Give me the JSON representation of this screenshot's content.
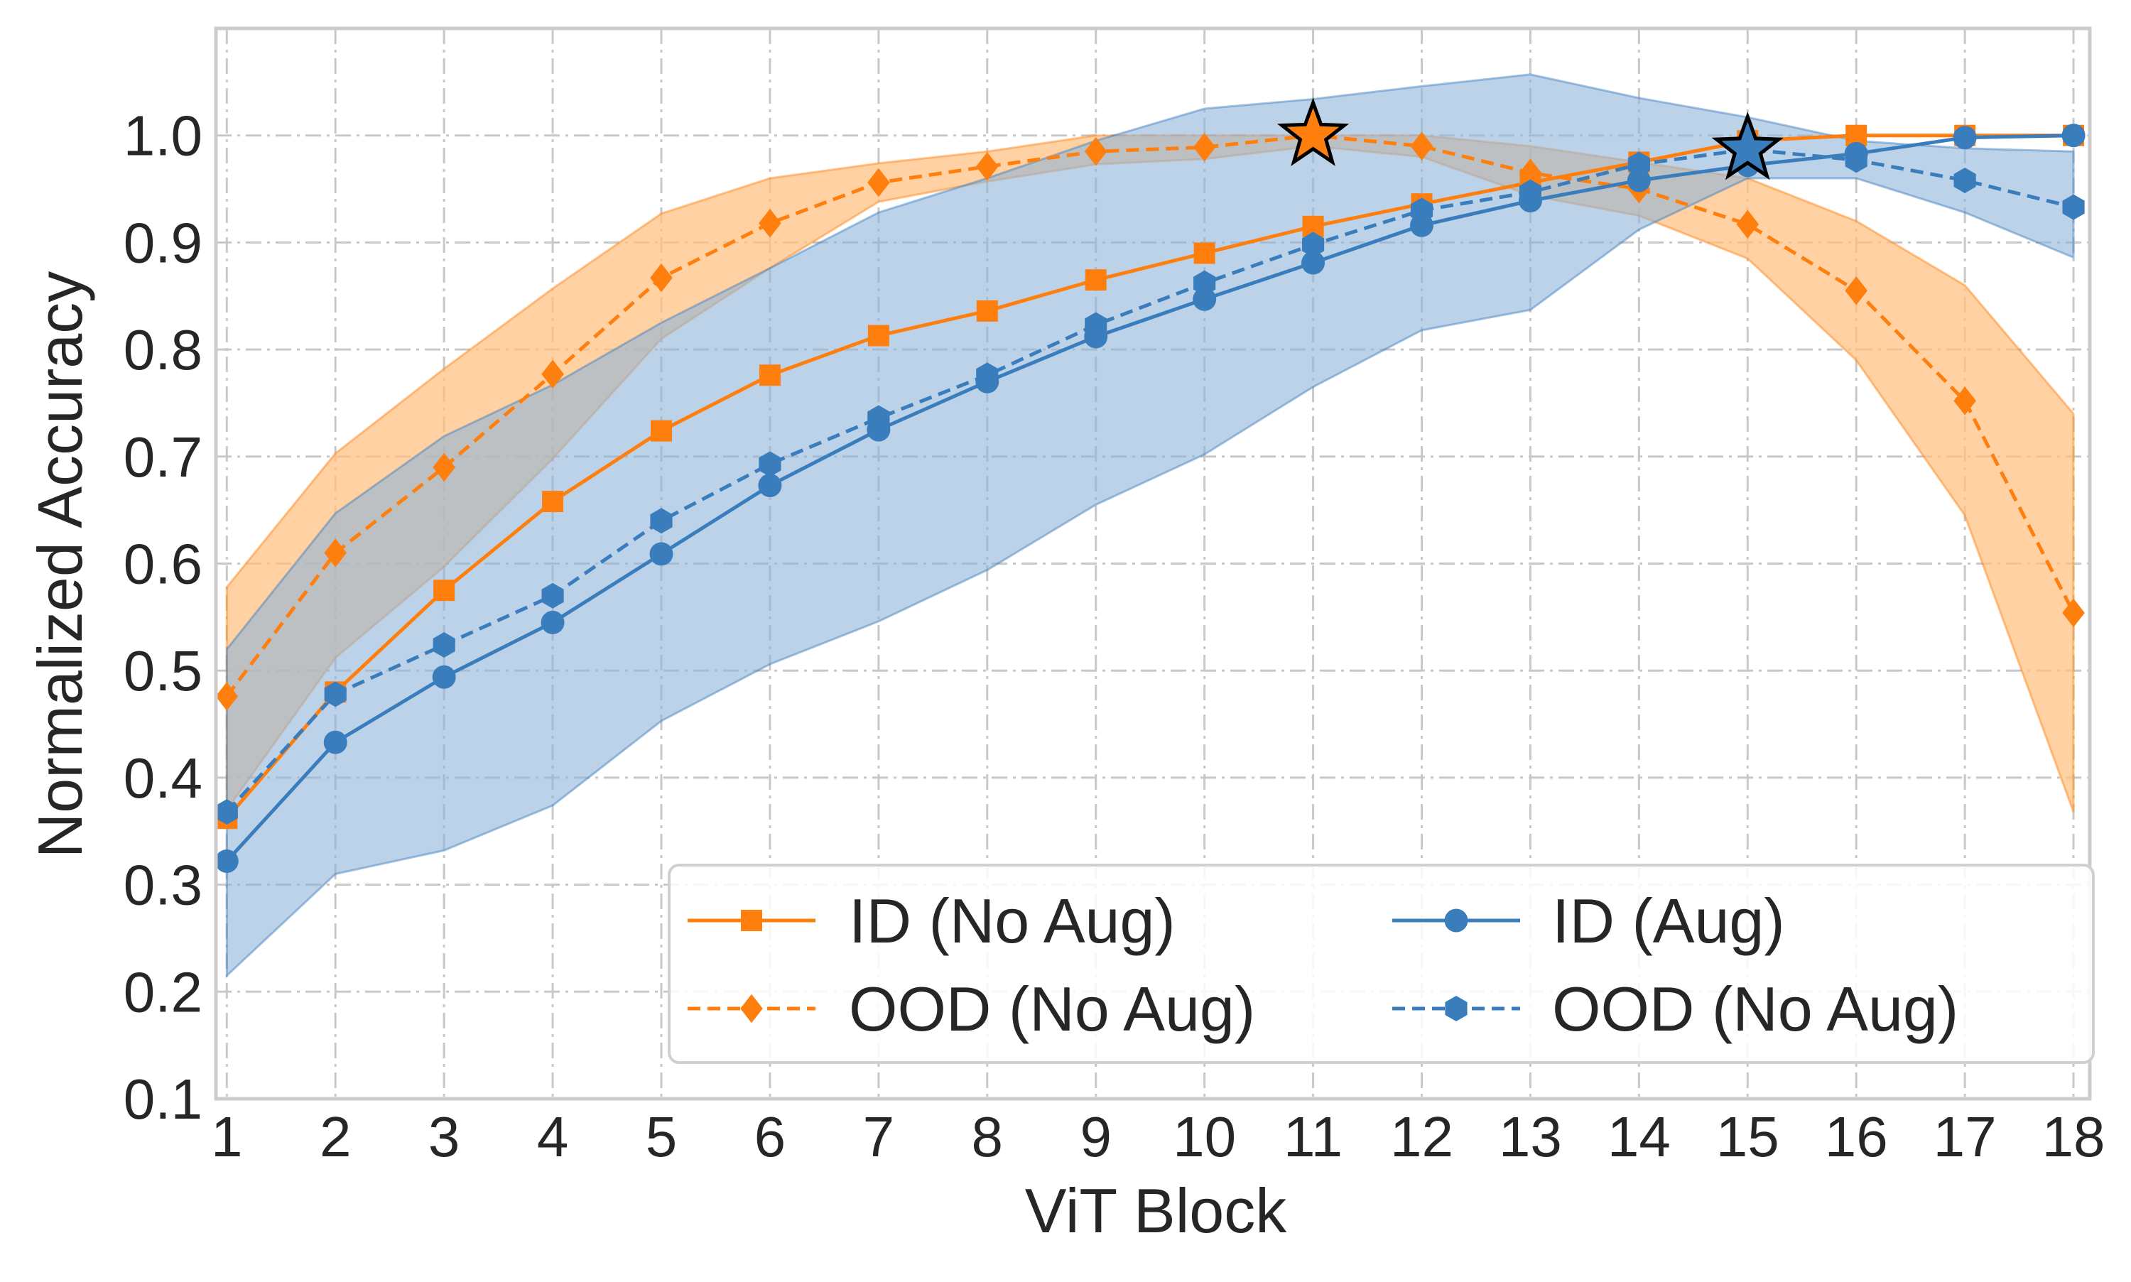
{
  "chart_data": {
    "type": "line",
    "title": "",
    "xlabel": "ViT Block",
    "ylabel": "Normalized  Accuracy",
    "x": [
      1,
      2,
      3,
      4,
      5,
      6,
      7,
      8,
      9,
      10,
      11,
      12,
      13,
      14,
      15,
      16,
      17,
      18
    ],
    "xlim": [
      0.9,
      18.15
    ],
    "ylim": [
      0.1,
      1.1
    ],
    "xticks": [
      "1",
      "2",
      "3",
      "4",
      "5",
      "6",
      "7",
      "8",
      "9",
      "10",
      "11",
      "12",
      "13",
      "14",
      "15",
      "16",
      "17",
      "18"
    ],
    "yticks": [
      "0.1",
      "0.2",
      "0.3",
      "0.4",
      "0.5",
      "0.6",
      "0.7",
      "0.8",
      "0.9",
      "1.0"
    ],
    "ytick_values": [
      0.1,
      0.2,
      0.3,
      0.4,
      0.5,
      0.6,
      0.7,
      0.8,
      0.9,
      1.0
    ],
    "grid": true,
    "legend_position": "lower-right",
    "colors": {
      "orange": "#ff7f0e",
      "blue": "#3a7dbd",
      "orange_fill": "#ffbf80",
      "blue_fill": "#8fb4d9",
      "grid": "#c8c8c8",
      "frame": "#cccccc"
    },
    "series": [
      {
        "name": "ID (No Aug)",
        "color": "#ff7f0e",
        "dash": "solid",
        "marker": "square",
        "values": [
          0.362,
          0.48,
          0.575,
          0.658,
          0.724,
          0.776,
          0.813,
          0.836,
          0.865,
          0.89,
          0.915,
          0.936,
          0.956,
          0.975,
          0.995,
          1.0,
          1.0,
          1.0
        ]
      },
      {
        "name": "OOD (No Aug)",
        "color": "#ff7f0e",
        "dash": "dashed",
        "marker": "diamond",
        "values": [
          0.476,
          0.61,
          0.69,
          0.777,
          0.867,
          0.918,
          0.956,
          0.971,
          0.985,
          0.989,
          1.0,
          0.99,
          0.965,
          0.95,
          0.917,
          0.855,
          0.752,
          0.554
        ],
        "band_upper": [
          0.578,
          0.703,
          0.782,
          0.857,
          0.927,
          0.96,
          0.974,
          0.985,
          1.0,
          1.0,
          1.0,
          1.0,
          0.99,
          0.975,
          0.96,
          0.92,
          0.86,
          0.74
        ],
        "band_lower": [
          0.37,
          0.512,
          0.597,
          0.698,
          0.81,
          0.876,
          0.938,
          0.957,
          0.973,
          0.978,
          0.99,
          0.98,
          0.944,
          0.925,
          0.885,
          0.79,
          0.645,
          0.368
        ]
      },
      {
        "name": "ID (Aug)",
        "color": "#3a7dbd",
        "dash": "solid",
        "marker": "circle",
        "values": [
          0.322,
          0.433,
          0.494,
          0.545,
          0.609,
          0.673,
          0.725,
          0.77,
          0.812,
          0.847,
          0.881,
          0.916,
          0.939,
          0.958,
          0.972,
          0.983,
          0.998,
          1.0
        ]
      },
      {
        "name": "OOD (No Aug)",
        "color": "#3a7dbd",
        "dash": "dashed",
        "marker": "hexagon",
        "values": [
          0.368,
          0.478,
          0.524,
          0.57,
          0.64,
          0.693,
          0.736,
          0.776,
          0.823,
          0.862,
          0.898,
          0.93,
          0.947,
          0.973,
          0.987,
          0.977,
          0.958,
          0.933
        ],
        "band_upper": [
          0.52,
          0.647,
          0.719,
          0.767,
          0.825,
          0.876,
          0.928,
          0.96,
          0.995,
          1.025,
          1.034,
          1.046,
          1.057,
          1.035,
          1.017,
          0.995,
          0.988,
          0.985
        ],
        "band_lower": [
          0.215,
          0.31,
          0.332,
          0.374,
          0.453,
          0.506,
          0.546,
          0.594,
          0.655,
          0.702,
          0.765,
          0.818,
          0.837,
          0.912,
          0.96,
          0.96,
          0.928,
          0.886
        ]
      }
    ],
    "stars": [
      {
        "x": 11,
        "y": 1.0,
        "color": "#ff7f0e"
      },
      {
        "x": 15,
        "y": 0.987,
        "color": "#3a7dbd"
      }
    ]
  }
}
